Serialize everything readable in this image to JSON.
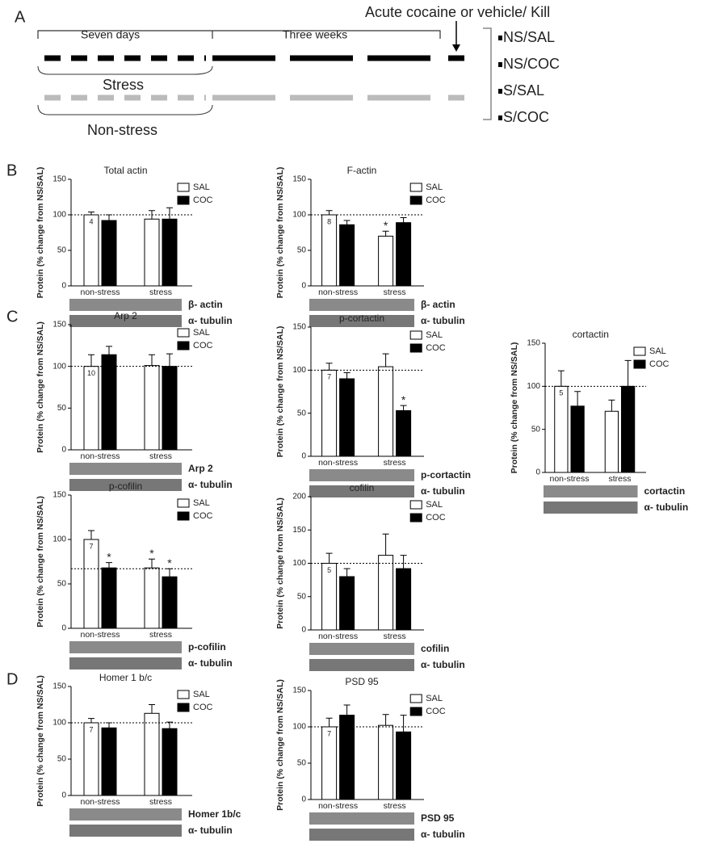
{
  "panel_labels": [
    "A",
    "B",
    "C",
    "D"
  ],
  "timeline": {
    "first_period": "Seven days",
    "second_period": "Three weeks",
    "event": "Acute cocaine or vehicle/ Kill",
    "stress": "Stress",
    "non_stress": "Non-stress",
    "groups": [
      "NS/SAL",
      "NS/COC",
      "S/SAL",
      "S/COC"
    ]
  },
  "chart_data": [
    {
      "type": "bar",
      "title": "Total actin",
      "ylabel": "Protein (% change from NS/SAL)",
      "categories": [
        "non-stress",
        "stress"
      ],
      "series": [
        {
          "name": "SAL",
          "color": "#ffffff",
          "values": [
            100,
            94
          ],
          "errors": [
            4,
            12
          ],
          "significance": [
            null,
            null
          ]
        },
        {
          "name": "COC",
          "color": "#000000",
          "values": [
            92,
            94
          ],
          "errors": [
            8,
            16
          ],
          "significance": [
            null,
            null
          ]
        }
      ],
      "ylim": [
        0,
        150
      ],
      "yticks": [
        0,
        50,
        100,
        150
      ],
      "reference_line": 100,
      "sample_size": 4,
      "blots": [
        "β- actin",
        "α- tubulin"
      ]
    },
    {
      "type": "bar",
      "title": "F-actin",
      "ylabel": "Protein (% change from NS/SAL)",
      "categories": [
        "non-stress",
        "stress"
      ],
      "series": [
        {
          "name": "SAL",
          "color": "#ffffff",
          "values": [
            100,
            70
          ],
          "errors": [
            6,
            7
          ],
          "significance": [
            null,
            "*"
          ]
        },
        {
          "name": "COC",
          "color": "#000000",
          "values": [
            86,
            89
          ],
          "errors": [
            6,
            7
          ],
          "significance": [
            null,
            null
          ]
        }
      ],
      "ylim": [
        0,
        150
      ],
      "yticks": [
        0,
        50,
        100,
        150
      ],
      "reference_line": 100,
      "sample_size": 8,
      "blots": [
        "β- actin",
        "α- tubulin"
      ]
    },
    {
      "type": "bar",
      "title": "Arp 2",
      "ylabel": "Protein (% change from NS/SAL)",
      "categories": [
        "non-stress",
        "stress"
      ],
      "series": [
        {
          "name": "SAL",
          "color": "#ffffff",
          "values": [
            100,
            101
          ],
          "errors": [
            14,
            13
          ],
          "significance": [
            null,
            null
          ]
        },
        {
          "name": "COC",
          "color": "#000000",
          "values": [
            114,
            100
          ],
          "errors": [
            10,
            15
          ],
          "significance": [
            null,
            null
          ]
        }
      ],
      "ylim": [
        0,
        150
      ],
      "yticks": [
        0,
        50,
        100,
        150
      ],
      "reference_line": 100,
      "sample_size": 10,
      "blots": [
        "Arp 2",
        "α- tubulin"
      ]
    },
    {
      "type": "bar",
      "title": "p-cortactin",
      "ylabel": "Protein (% change from NS/SAL)",
      "categories": [
        "non-stress",
        "stress"
      ],
      "series": [
        {
          "name": "SAL",
          "color": "#ffffff",
          "values": [
            100,
            104
          ],
          "errors": [
            8,
            15
          ],
          "significance": [
            null,
            null
          ]
        },
        {
          "name": "COC",
          "color": "#000000",
          "values": [
            90,
            53
          ],
          "errors": [
            7,
            6
          ],
          "significance": [
            null,
            "*"
          ]
        }
      ],
      "ylim": [
        0,
        150
      ],
      "yticks": [
        0,
        50,
        100,
        150
      ],
      "reference_line": 100,
      "sample_size": 7,
      "blots": [
        "p-cortactin",
        "α- tubulin"
      ]
    },
    {
      "type": "bar",
      "title": "cortactin",
      "ylabel": "Protein (% change from NS/SAL)",
      "categories": [
        "non-stress",
        "stress"
      ],
      "series": [
        {
          "name": "SAL",
          "color": "#ffffff",
          "values": [
            100,
            71
          ],
          "errors": [
            18,
            13
          ],
          "significance": [
            null,
            null
          ]
        },
        {
          "name": "COC",
          "color": "#000000",
          "values": [
            77,
            100
          ],
          "errors": [
            17,
            30
          ],
          "significance": [
            null,
            null
          ]
        }
      ],
      "ylim": [
        0,
        150
      ],
      "yticks": [
        0,
        50,
        100,
        150
      ],
      "reference_line": 100,
      "sample_size": 5,
      "blots": [
        "cortactin",
        "α- tubulin"
      ]
    },
    {
      "type": "bar",
      "title": "p-cofilin",
      "ylabel": "Protein (% change from NS/SAL)",
      "categories": [
        "non-stress",
        "stress"
      ],
      "series": [
        {
          "name": "SAL",
          "color": "#ffffff",
          "values": [
            100,
            68
          ],
          "errors": [
            10,
            10
          ],
          "significance": [
            null,
            "*"
          ]
        },
        {
          "name": "COC",
          "color": "#000000",
          "values": [
            68,
            58
          ],
          "errors": [
            6,
            9
          ],
          "significance": [
            "*",
            "*"
          ]
        }
      ],
      "ylim": [
        0,
        150
      ],
      "yticks": [
        0,
        50,
        100,
        150
      ],
      "reference_line": 67,
      "sample_size": 7,
      "blots": [
        "p-cofilin",
        "α- tubulin"
      ]
    },
    {
      "type": "bar",
      "title": "cofilin",
      "ylabel": "Protein (% change from NS/SAL)",
      "categories": [
        "non-stress",
        "stress"
      ],
      "series": [
        {
          "name": "SAL",
          "color": "#ffffff",
          "values": [
            100,
            112
          ],
          "errors": [
            15,
            32
          ],
          "significance": [
            null,
            null
          ]
        },
        {
          "name": "COC",
          "color": "#000000",
          "values": [
            80,
            92
          ],
          "errors": [
            12,
            20
          ],
          "significance": [
            null,
            null
          ]
        }
      ],
      "ylim": [
        0,
        200
      ],
      "yticks": [
        0,
        50,
        100,
        150,
        200
      ],
      "reference_line": 100,
      "sample_size": 5,
      "blots": [
        "cofilin",
        "α- tubulin"
      ]
    },
    {
      "type": "bar",
      "title": "Homer 1 b/c",
      "ylabel": "Protein (% change from NS/SAL)",
      "categories": [
        "non-stress",
        "stress"
      ],
      "series": [
        {
          "name": "SAL",
          "color": "#ffffff",
          "values": [
            100,
            113
          ],
          "errors": [
            6,
            12
          ],
          "significance": [
            null,
            null
          ]
        },
        {
          "name": "COC",
          "color": "#000000",
          "values": [
            93,
            92
          ],
          "errors": [
            7,
            9
          ],
          "significance": [
            null,
            null
          ]
        }
      ],
      "ylim": [
        0,
        150
      ],
      "yticks": [
        0,
        50,
        100,
        150
      ],
      "reference_line": 100,
      "sample_size": 7,
      "blots": [
        "Homer 1b/c",
        "α- tubulin"
      ]
    },
    {
      "type": "bar",
      "title": "PSD 95",
      "ylabel": "Protein (% change from NS/SAL)",
      "categories": [
        "non-stress",
        "stress"
      ],
      "series": [
        {
          "name": "SAL",
          "color": "#ffffff",
          "values": [
            100,
            102
          ],
          "errors": [
            12,
            15
          ],
          "significance": [
            null,
            null
          ]
        },
        {
          "name": "COC",
          "color": "#000000",
          "values": [
            116,
            93
          ],
          "errors": [
            14,
            23
          ],
          "significance": [
            null,
            null
          ]
        }
      ],
      "ylim": [
        0,
        150
      ],
      "yticks": [
        0,
        50,
        100,
        150
      ],
      "reference_line": 100,
      "sample_size": 7,
      "blots": [
        "PSD 95",
        "α- tubulin"
      ]
    }
  ]
}
